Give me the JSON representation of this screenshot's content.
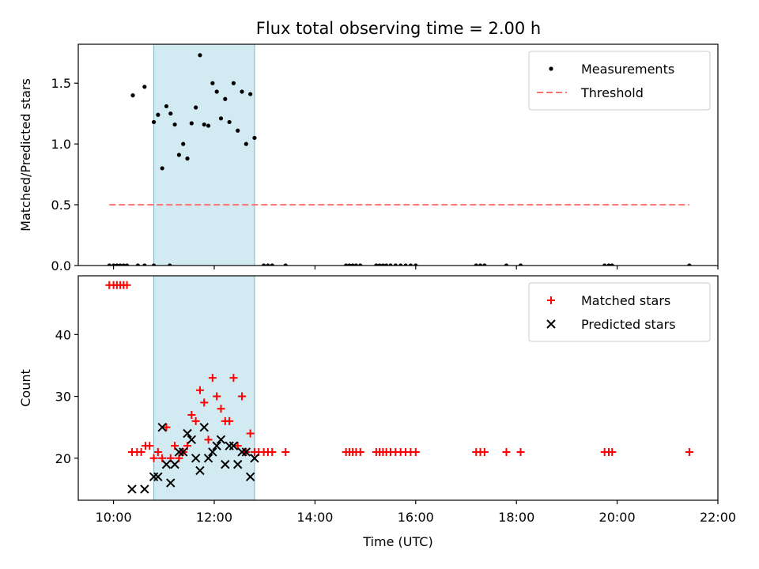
{
  "chart_data": [
    {
      "type": "scatter",
      "title": "Flux total observing time = 2.00 h",
      "ylabel": "Matched/Predicted stars",
      "xlabel": "",
      "xlim": [
        "09:18",
        "22:00"
      ],
      "ylim": [
        0,
        1.82
      ],
      "yticks": [
        0.0,
        0.5,
        1.0,
        1.5
      ],
      "ytick_labels": [
        "0.0",
        "0.5",
        "1.0",
        "1.5"
      ],
      "grid": false,
      "legend_position": "top-right",
      "shaded_interval": {
        "x0": "10:48",
        "x1": "12:48",
        "color": "#add8e6"
      },
      "series": [
        {
          "name": "Measurements",
          "marker": "dot",
          "color": "#000000",
          "points": [
            [
              "09:55",
              0
            ],
            [
              "10:00",
              0
            ],
            [
              "10:04",
              0
            ],
            [
              "10:08",
              0
            ],
            [
              "10:12",
              0
            ],
            [
              "10:16",
              0
            ],
            [
              "10:29",
              0
            ],
            [
              "10:37",
              0
            ],
            [
              "10:48",
              0
            ],
            [
              "11:07",
              0
            ],
            [
              "12:59",
              0
            ],
            [
              "13:04",
              0
            ],
            [
              "13:09",
              0
            ],
            [
              "13:25",
              0
            ],
            [
              "14:37",
              0
            ],
            [
              "14:41",
              0
            ],
            [
              "14:45",
              0
            ],
            [
              "14:49",
              0
            ],
            [
              "14:54",
              0
            ],
            [
              "15:13",
              0
            ],
            [
              "15:17",
              0
            ],
            [
              "15:21",
              0
            ],
            [
              "15:25",
              0
            ],
            [
              "15:30",
              0
            ],
            [
              "15:36",
              0
            ],
            [
              "15:42",
              0
            ],
            [
              "15:48",
              0
            ],
            [
              "15:54",
              0
            ],
            [
              "16:00",
              0
            ],
            [
              "17:12",
              0
            ],
            [
              "17:17",
              0
            ],
            [
              "17:22",
              0
            ],
            [
              "17:48",
              0
            ],
            [
              "18:05",
              0
            ],
            [
              "19:45",
              0
            ],
            [
              "19:50",
              0
            ],
            [
              "19:54",
              0
            ],
            [
              "21:26",
              0
            ],
            [
              "10:23",
              1.4
            ],
            [
              "10:37",
              1.47
            ],
            [
              "10:48",
              1.18
            ],
            [
              "10:53",
              1.24
            ],
            [
              "10:58",
              0.8
            ],
            [
              "11:03",
              1.31
            ],
            [
              "11:08",
              1.25
            ],
            [
              "11:13",
              1.16
            ],
            [
              "11:18",
              0.91
            ],
            [
              "11:23",
              1.0
            ],
            [
              "11:28",
              0.88
            ],
            [
              "11:33",
              1.17
            ],
            [
              "11:38",
              1.3
            ],
            [
              "11:43",
              1.73
            ],
            [
              "11:48",
              1.16
            ],
            [
              "11:53",
              1.15
            ],
            [
              "11:58",
              1.5
            ],
            [
              "12:03",
              1.43
            ],
            [
              "12:08",
              1.21
            ],
            [
              "12:13",
              1.37
            ],
            [
              "12:18",
              1.18
            ],
            [
              "12:23",
              1.5
            ],
            [
              "12:28",
              1.11
            ],
            [
              "12:33",
              1.43
            ],
            [
              "12:38",
              1.0
            ],
            [
              "12:43",
              1.41
            ],
            [
              "12:48",
              1.05
            ]
          ]
        },
        {
          "name": "Threshold",
          "type": "line",
          "style": "dashed",
          "color": "#ff7070",
          "points": [
            [
              "09:55",
              0.5
            ],
            [
              "21:26",
              0.5
            ]
          ]
        }
      ]
    },
    {
      "type": "scatter",
      "title": "",
      "ylabel": "Count",
      "xlabel": "Time (UTC)",
      "xlim": [
        "09:18",
        "22:00"
      ],
      "ylim": [
        13.2,
        49.5
      ],
      "yticks": [
        20,
        30,
        40
      ],
      "ytick_labels": [
        "20",
        "30",
        "40"
      ],
      "xticks": [
        "10:00",
        "12:00",
        "14:00",
        "16:00",
        "18:00",
        "20:00",
        "22:00"
      ],
      "xtick_labels": [
        "10:00",
        "12:00",
        "14:00",
        "16:00",
        "18:00",
        "20:00",
        "22:00"
      ],
      "grid": false,
      "legend_position": "top-right",
      "shaded_interval": {
        "x0": "10:48",
        "x1": "12:48",
        "color": "#add8e6"
      },
      "series": [
        {
          "name": "Matched stars",
          "marker": "plus",
          "color": "#ff0000",
          "points": [
            [
              "09:55",
              48
            ],
            [
              "10:00",
              48
            ],
            [
              "10:04",
              48
            ],
            [
              "10:08",
              48
            ],
            [
              "10:12",
              48
            ],
            [
              "10:16",
              48
            ],
            [
              "10:22",
              21
            ],
            [
              "10:28",
              21
            ],
            [
              "10:33",
              21
            ],
            [
              "10:38",
              22
            ],
            [
              "10:43",
              22
            ],
            [
              "10:48",
              20
            ],
            [
              "10:53",
              21
            ],
            [
              "10:58",
              20
            ],
            [
              "11:03",
              25
            ],
            [
              "11:08",
              20
            ],
            [
              "11:13",
              22
            ],
            [
              "11:18",
              20
            ],
            [
              "11:23",
              21
            ],
            [
              "11:28",
              22
            ],
            [
              "11:33",
              27
            ],
            [
              "11:38",
              26
            ],
            [
              "11:43",
              31
            ],
            [
              "11:48",
              29
            ],
            [
              "11:53",
              23
            ],
            [
              "11:58",
              33
            ],
            [
              "12:03",
              30
            ],
            [
              "12:08",
              28
            ],
            [
              "12:13",
              26
            ],
            [
              "12:18",
              26
            ],
            [
              "12:23",
              33
            ],
            [
              "12:28",
              22
            ],
            [
              "12:33",
              30
            ],
            [
              "12:38",
              21
            ],
            [
              "12:43",
              24
            ],
            [
              "12:48",
              21
            ],
            [
              "12:53",
              21
            ],
            [
              "12:59",
              21
            ],
            [
              "13:04",
              21
            ],
            [
              "13:09",
              21
            ],
            [
              "13:25",
              21
            ],
            [
              "14:37",
              21
            ],
            [
              "14:41",
              21
            ],
            [
              "14:45",
              21
            ],
            [
              "14:49",
              21
            ],
            [
              "14:54",
              21
            ],
            [
              "15:13",
              21
            ],
            [
              "15:17",
              21
            ],
            [
              "15:21",
              21
            ],
            [
              "15:25",
              21
            ],
            [
              "15:30",
              21
            ],
            [
              "15:36",
              21
            ],
            [
              "15:42",
              21
            ],
            [
              "15:48",
              21
            ],
            [
              "15:54",
              21
            ],
            [
              "16:00",
              21
            ],
            [
              "17:12",
              21
            ],
            [
              "17:17",
              21
            ],
            [
              "17:22",
              21
            ],
            [
              "17:48",
              21
            ],
            [
              "18:05",
              21
            ],
            [
              "19:45",
              21
            ],
            [
              "19:50",
              21
            ],
            [
              "19:54",
              21
            ],
            [
              "21:26",
              21
            ]
          ]
        },
        {
          "name": "Predicted stars",
          "marker": "x",
          "color": "#000000",
          "points": [
            [
              "10:22",
              15
            ],
            [
              "10:37",
              15
            ],
            [
              "10:48",
              17
            ],
            [
              "10:53",
              17
            ],
            [
              "10:58",
              25
            ],
            [
              "11:03",
              19
            ],
            [
              "11:08",
              16
            ],
            [
              "11:13",
              19
            ],
            [
              "11:18",
              21
            ],
            [
              "11:23",
              21
            ],
            [
              "11:28",
              24
            ],
            [
              "11:33",
              23
            ],
            [
              "11:38",
              20
            ],
            [
              "11:43",
              18
            ],
            [
              "11:48",
              25
            ],
            [
              "11:53",
              20
            ],
            [
              "11:58",
              21
            ],
            [
              "12:03",
              22
            ],
            [
              "12:08",
              23
            ],
            [
              "12:13",
              19
            ],
            [
              "12:18",
              22
            ],
            [
              "12:23",
              22
            ],
            [
              "12:28",
              19
            ],
            [
              "12:33",
              21
            ],
            [
              "12:38",
              21
            ],
            [
              "12:43",
              17
            ],
            [
              "12:48",
              20
            ]
          ]
        }
      ]
    }
  ]
}
